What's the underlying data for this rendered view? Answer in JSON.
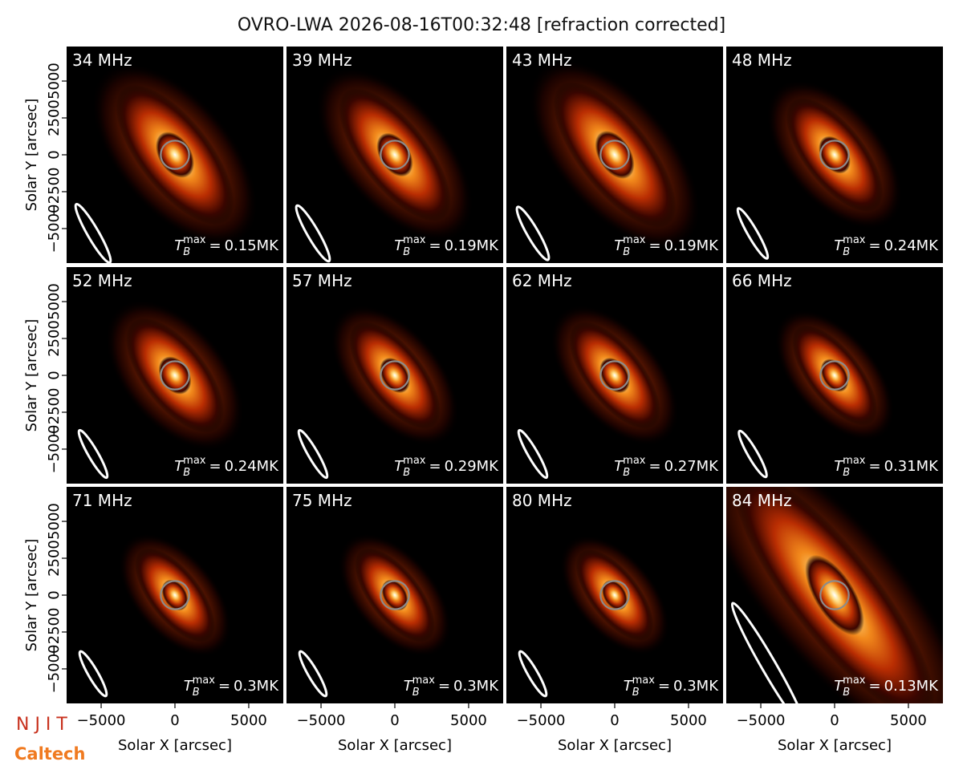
{
  "logos": [
    "N J I T",
    "Caltech"
  ],
  "chart_data": {
    "type": "image-grid",
    "title": "OVRO-LWA 2026-08-16T00:32:48 [refraction corrected]",
    "xlabel": "Solar X [arcsec]",
    "ylabel": "Solar Y [arcsec]",
    "xlim": [
      -7340,
      7340
    ],
    "ylim": [
      -7340,
      7340
    ],
    "xticks": [
      {
        "value": -5000,
        "label": "−5000"
      },
      0,
      5000
    ],
    "yticks": [
      {
        "value": -5000,
        "label": "−5000"
      },
      {
        "value": -2500,
        "label": "−2500"
      },
      0,
      2500,
      5000
    ],
    "solar_radius": 960,
    "tb_symbol": {
      "base": "T",
      "sub": "B",
      "sup": "max",
      "eq": "="
    },
    "panels": [
      {
        "label": "34 MHz",
        "tb_max": "0.15MK"
      },
      {
        "label": "39 MHz",
        "tb_max": "0.19MK"
      },
      {
        "label": "43 MHz",
        "tb_max": "0.19MK"
      },
      {
        "label": "48 MHz",
        "tb_max": "0.24MK"
      },
      {
        "label": "52 MHz",
        "tb_max": "0.24MK"
      },
      {
        "label": "57 MHz",
        "tb_max": "0.29MK"
      },
      {
        "label": "62 MHz",
        "tb_max": "0.27MK"
      },
      {
        "label": "66 MHz",
        "tb_max": "0.31MK"
      },
      {
        "label": "71 MHz",
        "tb_max": "0.3MK"
      },
      {
        "label": "75 MHz",
        "tb_max": "0.3MK"
      },
      {
        "label": "80 MHz",
        "tb_max": "0.3MK"
      },
      {
        "label": "84 MHz",
        "tb_max": "0.13MK"
      }
    ]
  }
}
